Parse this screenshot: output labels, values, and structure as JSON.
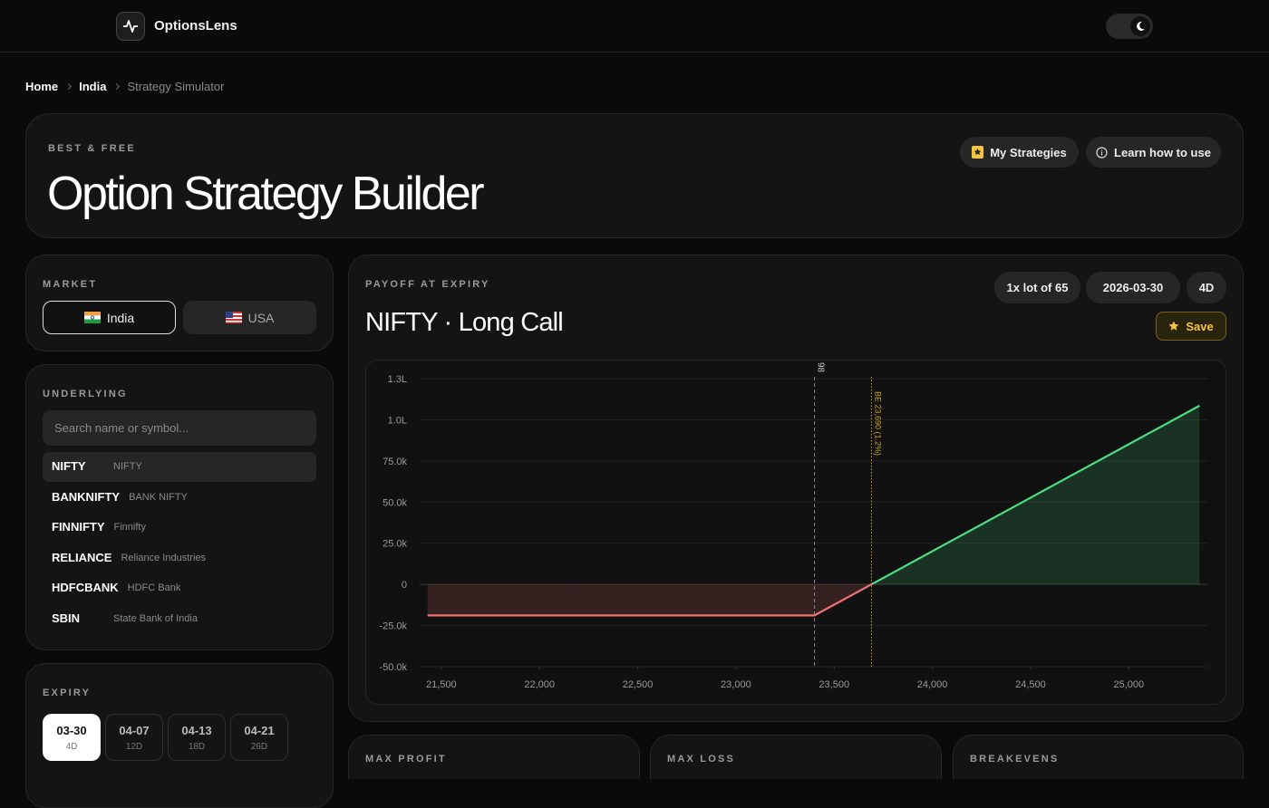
{
  "header": {
    "brand": "OptionsLens"
  },
  "breadcrumb": [
    "Home",
    "India",
    "Strategy Simulator"
  ],
  "hero": {
    "eyebrow": "BEST & FREE",
    "title": "Option Strategy Builder",
    "actions": [
      "My Strategies",
      "Learn how to use"
    ]
  },
  "market": {
    "label": "MARKET",
    "options": [
      "India",
      "USA"
    ]
  },
  "underlying": {
    "label": "UNDERLYING",
    "search_placeholder": "Search name or symbol...",
    "items": [
      {
        "symbol": "NIFTY",
        "name": "NIFTY"
      },
      {
        "symbol": "BANKNIFTY",
        "name": "BANK NIFTY"
      },
      {
        "symbol": "FINNIFTY",
        "name": "Finnifty"
      },
      {
        "symbol": "RELIANCE",
        "name": "Reliance Industries"
      },
      {
        "symbol": "HDFCBANK",
        "name": "HDFC Bank"
      },
      {
        "symbol": "SBIN",
        "name": "State Bank of India"
      }
    ]
  },
  "expiry": {
    "label": "EXPIRY",
    "items": [
      {
        "date": "03-30",
        "days": "4D"
      },
      {
        "date": "04-07",
        "days": "12D"
      },
      {
        "date": "04-13",
        "days": "18D"
      },
      {
        "date": "04-21",
        "days": "26D"
      }
    ]
  },
  "payoff": {
    "label": "PAYOFF AT EXPIRY",
    "chips": [
      "1x lot of 65",
      "2026-03-30",
      "4D"
    ],
    "title": "NIFTY · Long Call",
    "save": "Save"
  },
  "chart_data": {
    "type": "line",
    "x": [
      21430,
      23400,
      25360
    ],
    "values": [
      -18850,
      -18850,
      108550
    ],
    "color_positive": "#4ade80",
    "color_negative": "#f07171",
    "xlim": [
      21390,
      25400
    ],
    "ylim": [
      -50000,
      125000
    ],
    "xticks": [
      {
        "value": 21500,
        "label": "21,500"
      },
      {
        "value": 22000,
        "label": "22,000"
      },
      {
        "value": 22500,
        "label": "22,500"
      },
      {
        "value": 23000,
        "label": "23,000"
      },
      {
        "value": 23500,
        "label": "23,500"
      },
      {
        "value": 24000,
        "label": "24,000"
      },
      {
        "value": 24500,
        "label": "24,500"
      },
      {
        "value": 25000,
        "label": "25,000"
      }
    ],
    "yticks": [
      {
        "value": -50000,
        "label": "-50.0k"
      },
      {
        "value": -25000,
        "label": "-25.0k"
      },
      0,
      {
        "value": 25000,
        "label": "25.0k"
      },
      {
        "value": 50000,
        "label": "50.0k"
      },
      {
        "value": 75000,
        "label": "75.0k"
      },
      {
        "value": 100000,
        "label": "1.0L"
      },
      {
        "value": 125000,
        "label": "1.3L"
      }
    ],
    "grid": true,
    "markers": [
      {
        "value": 23400,
        "label": "98",
        "style": "dashed",
        "color": "#8a8a8a"
      },
      {
        "value": 23690,
        "label": "BE 23,690 (1.2%)",
        "style": "dotted",
        "color": "#c9a227"
      }
    ]
  },
  "stats": [
    "MAX PROFIT",
    "MAX LOSS",
    "BREAKEVENS"
  ]
}
